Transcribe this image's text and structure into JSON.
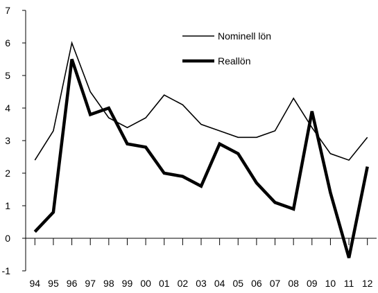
{
  "chart_data": {
    "type": "line",
    "title": "",
    "xlabel": "",
    "ylabel": "",
    "categories": [
      "94",
      "95",
      "96",
      "97",
      "98",
      "99",
      "00",
      "01",
      "02",
      "03",
      "04",
      "05",
      "06",
      "07",
      "08",
      "09",
      "10",
      "11",
      "12"
    ],
    "ylim": [
      -1,
      7
    ],
    "yticks": [
      -1,
      0,
      1,
      2,
      3,
      4,
      5,
      6,
      7
    ],
    "grid": false,
    "legend_position": "top-right",
    "series": [
      {
        "name": "Nominell lön",
        "style": "thin",
        "color": "#000000",
        "values": [
          2.4,
          3.3,
          6.0,
          4.5,
          3.7,
          3.4,
          3.7,
          4.4,
          4.1,
          3.5,
          3.3,
          3.1,
          3.1,
          3.3,
          4.3,
          3.4,
          2.6,
          2.4,
          3.1
        ]
      },
      {
        "name": "Reallön",
        "style": "thick",
        "color": "#000000",
        "values": [
          0.2,
          0.8,
          5.5,
          3.8,
          4.0,
          2.9,
          2.8,
          2.0,
          1.9,
          1.6,
          2.9,
          2.6,
          1.7,
          1.1,
          0.9,
          3.9,
          1.4,
          -0.6,
          2.2
        ]
      }
    ]
  }
}
